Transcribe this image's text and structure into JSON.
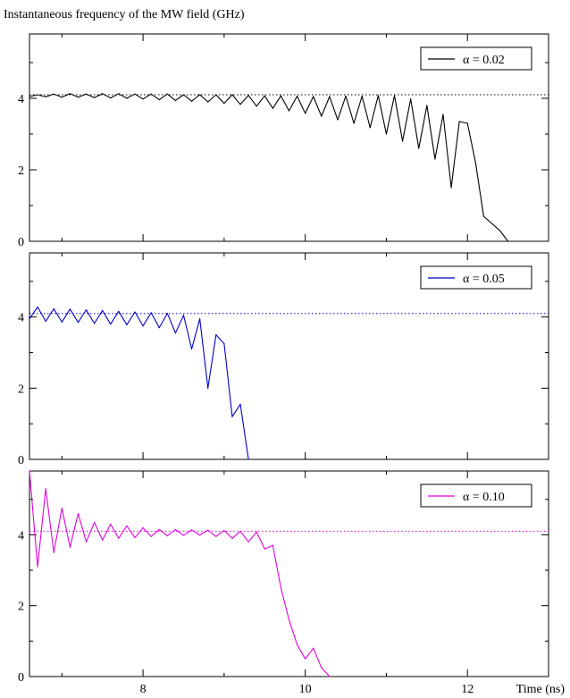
{
  "figure": {
    "ylabel": "Instantaneous frequency of the MW field (GHz)",
    "xlabel": "Time (ns)"
  },
  "chart_data": {
    "type": "line",
    "xlim": [
      6.6,
      13.0
    ],
    "ylim": [
      0,
      5.8
    ],
    "x_ticks": [
      8,
      10,
      12
    ],
    "y_ticks": [
      0,
      2,
      4
    ],
    "reference_level": 4.1,
    "legend_position": "top-right",
    "panels": [
      {
        "series": [
          {
            "name": "α = 0.02",
            "color": "#000000",
            "x": [
              6.6,
              6.7,
              6.8,
              6.9,
              7.0,
              7.1,
              7.2,
              7.3,
              7.4,
              7.5,
              7.6,
              7.7,
              7.8,
              7.9,
              8.0,
              8.1,
              8.2,
              8.3,
              8.4,
              8.5,
              8.6,
              8.7,
              8.8,
              8.9,
              9.0,
              9.1,
              9.2,
              9.3,
              9.4,
              9.5,
              9.6,
              9.7,
              9.8,
              9.9,
              10.0,
              10.1,
              10.2,
              10.3,
              10.4,
              10.5,
              10.6,
              10.7,
              10.8,
              10.9,
              11.0,
              11.1,
              11.2,
              11.3,
              11.4,
              11.5,
              11.6,
              11.7,
              11.8,
              11.9,
              12.0,
              12.1,
              12.2,
              12.3,
              12.4,
              12.5,
              12.6,
              12.7
            ],
            "y": [
              4.05,
              4.1,
              4.04,
              4.12,
              4.03,
              4.13,
              4.03,
              4.12,
              4.02,
              4.13,
              4.01,
              4.13,
              4.0,
              4.12,
              3.98,
              4.12,
              3.96,
              4.12,
              3.94,
              4.1,
              3.92,
              4.1,
              3.9,
              4.1,
              3.86,
              4.1,
              3.83,
              4.08,
              3.78,
              4.07,
              3.72,
              4.07,
              3.65,
              4.06,
              3.58,
              4.05,
              3.5,
              4.05,
              3.4,
              4.06,
              3.3,
              4.06,
              3.18,
              4.08,
              3.0,
              4.08,
              2.8,
              3.98,
              2.6,
              3.8,
              2.3,
              3.55,
              1.5,
              3.35,
              3.3,
              2.2,
              0.7,
              0.5,
              0.3,
              0.0,
              null,
              null
            ]
          }
        ]
      },
      {
        "series": [
          {
            "name": "α = 0.05",
            "color": "#0000cc",
            "x": [
              6.6,
              6.7,
              6.8,
              6.9,
              7.0,
              7.1,
              7.2,
              7.3,
              7.4,
              7.5,
              7.6,
              7.7,
              7.8,
              7.9,
              8.0,
              8.1,
              8.2,
              8.3,
              8.4,
              8.5,
              8.6,
              8.7,
              8.8,
              8.9,
              9.0,
              9.1,
              9.2,
              9.3,
              9.4
            ],
            "y": [
              3.95,
              4.28,
              3.88,
              4.23,
              3.86,
              4.22,
              3.85,
              4.2,
              3.82,
              4.18,
              3.8,
              4.16,
              3.78,
              4.14,
              3.75,
              4.12,
              3.7,
              4.1,
              3.55,
              4.05,
              3.1,
              3.95,
              2.0,
              3.5,
              3.25,
              1.2,
              1.55,
              0.0,
              null
            ]
          }
        ]
      },
      {
        "series": [
          {
            "name": "α = 0.10",
            "color": "#e000e0",
            "x": [
              6.6,
              6.7,
              6.8,
              6.9,
              7.0,
              7.1,
              7.2,
              7.3,
              7.4,
              7.5,
              7.6,
              7.7,
              7.8,
              7.9,
              8.0,
              8.1,
              8.2,
              8.3,
              8.4,
              8.5,
              8.6,
              8.7,
              8.8,
              8.9,
              9.0,
              9.1,
              9.2,
              9.3,
              9.4,
              9.5,
              9.6,
              9.7,
              9.8,
              9.9,
              10.0,
              10.1,
              10.2,
              10.3
            ],
            "y": [
              5.8,
              3.1,
              5.3,
              3.5,
              4.75,
              3.65,
              4.6,
              3.8,
              4.35,
              3.85,
              4.3,
              3.9,
              4.25,
              3.92,
              4.2,
              3.95,
              4.15,
              3.97,
              4.15,
              3.98,
              4.14,
              3.99,
              4.13,
              3.95,
              4.12,
              3.9,
              4.1,
              3.8,
              4.08,
              3.6,
              3.7,
              2.5,
              1.6,
              0.9,
              0.5,
              0.8,
              0.25,
              0.0
            ]
          }
        ]
      }
    ]
  }
}
